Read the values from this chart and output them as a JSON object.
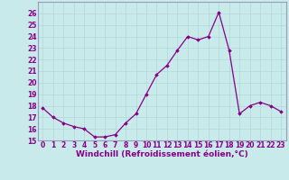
{
  "x": [
    0,
    1,
    2,
    3,
    4,
    5,
    6,
    7,
    8,
    9,
    10,
    11,
    12,
    13,
    14,
    15,
    16,
    17,
    18,
    19,
    20,
    21,
    22,
    23
  ],
  "y": [
    17.8,
    17.0,
    16.5,
    16.2,
    16.0,
    15.3,
    15.3,
    15.5,
    16.5,
    17.3,
    19.0,
    20.7,
    21.5,
    22.8,
    24.0,
    23.7,
    24.0,
    26.1,
    22.8,
    17.3,
    18.0,
    18.3,
    18.0,
    17.5
  ],
  "line_color": "#880088",
  "marker": "D",
  "marker_size": 1.8,
  "line_width": 0.9,
  "xlabel": "Windchill (Refroidissement éolien,°C)",
  "xlabel_fontsize": 6.5,
  "ylim": [
    15,
    27
  ],
  "xlim": [
    -0.5,
    23.5
  ],
  "yticks": [
    15,
    16,
    17,
    18,
    19,
    20,
    21,
    22,
    23,
    24,
    25,
    26
  ],
  "xticks": [
    0,
    1,
    2,
    3,
    4,
    5,
    6,
    7,
    8,
    9,
    10,
    11,
    12,
    13,
    14,
    15,
    16,
    17,
    18,
    19,
    20,
    21,
    22,
    23
  ],
  "tick_fontsize": 5.5,
  "grid_color": "#b0d8d8",
  "bg_color": "#c8eaea",
  "fig_bg_color": "#c8eaea",
  "spine_color": "#9999bb"
}
